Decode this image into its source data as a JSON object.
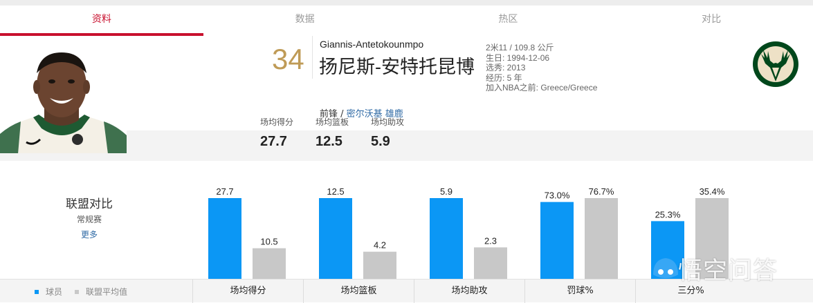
{
  "tabs": [
    {
      "label": "资料",
      "active": true
    },
    {
      "label": "数据",
      "active": false
    },
    {
      "label": "热区",
      "active": false
    },
    {
      "label": "对比",
      "active": false
    }
  ],
  "player": {
    "jersey_number": "34",
    "name_en": "Giannis-Antetokounmpo",
    "name_cn": "扬尼斯-安特托昆博",
    "position": "前锋",
    "separator": " / ",
    "team": "密尔沃基 雄鹿",
    "info": [
      "2米11 / 109.8 公斤",
      "生日: 1994-12-06",
      "选秀: 2013",
      "经历: 5 年",
      "加入NBA之前: Greece/Greece"
    ],
    "stats_labels": [
      "场均得分",
      "场均篮板",
      "场均助攻"
    ],
    "stats_values": [
      "27.7",
      "12.5",
      "5.9"
    ],
    "team_logo": "bucks-logo",
    "team_color": "#00471b"
  },
  "league": {
    "title": "联盟对比",
    "subtitle": "常规赛",
    "more": "更多",
    "legend": [
      {
        "label": "球员",
        "color": "#0b97f5"
      },
      {
        "label": "联盟平均值",
        "color": "#c8c8c8"
      }
    ]
  },
  "chart_data": {
    "type": "bar",
    "categories": [
      "场均得分",
      "场均篮板",
      "场均助攻",
      "罚球%",
      "三分%"
    ],
    "series": [
      {
        "name": "球员",
        "color": "#0b97f5",
        "values": [
          27.7,
          12.5,
          5.9,
          73.0,
          25.3
        ],
        "labels": [
          "27.7",
          "12.5",
          "5.9",
          "73.0%",
          "25.3%"
        ]
      },
      {
        "name": "联盟平均值",
        "color": "#c8c8c8",
        "values": [
          10.5,
          4.2,
          2.3,
          76.7,
          35.4
        ],
        "labels": [
          "10.5",
          "4.2",
          "2.3",
          "76.7%",
          "35.4%"
        ]
      }
    ]
  },
  "watermark": {
    "text": "悟空问答"
  }
}
